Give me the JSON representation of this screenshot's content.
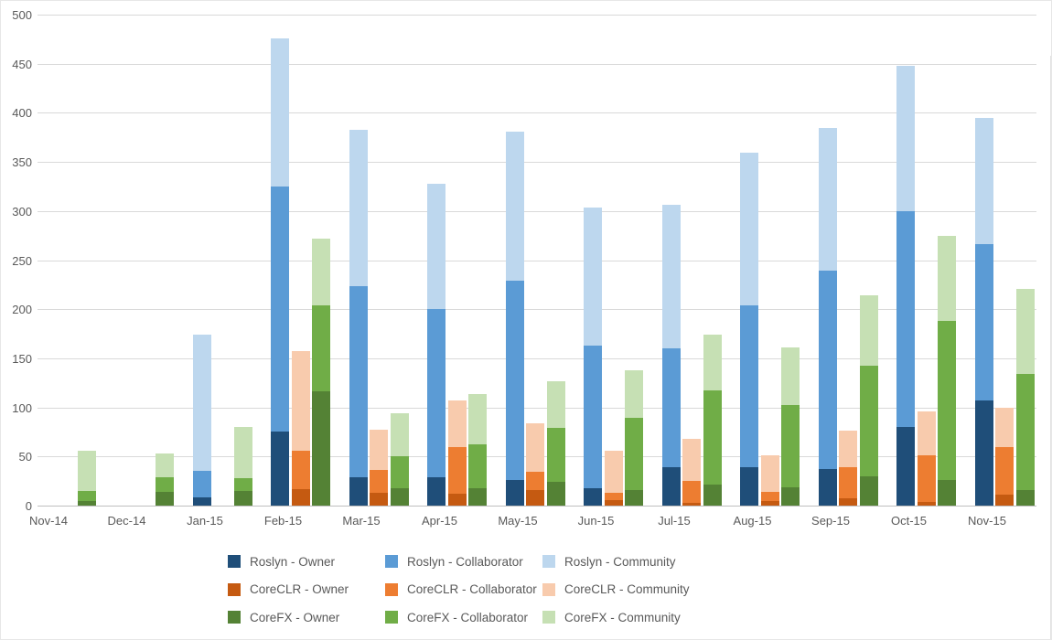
{
  "chart_data": {
    "type": "bar",
    "stacked": true,
    "title": "",
    "xlabel": "",
    "ylabel": "",
    "ylim": [
      0,
      500
    ],
    "yticks": [
      0,
      50,
      100,
      150,
      200,
      250,
      300,
      350,
      400,
      450,
      500
    ],
    "grid": true,
    "legend_position": "bottom",
    "categories": [
      "Nov-14",
      "Dec-14",
      "Jan-15",
      "Feb-15",
      "Mar-15",
      "Apr-15",
      "May-15",
      "Jun-15",
      "Jul-15",
      "Aug-15",
      "Sep-15",
      "Oct-15",
      "Nov-15"
    ],
    "bar_groups": [
      "Roslyn",
      "CoreCLR",
      "CoreFX"
    ],
    "series": [
      {
        "name": "Roslyn - Owner",
        "group": "Roslyn",
        "color": "#1f4e79",
        "values": [
          0,
          0,
          8,
          75,
          29,
          29,
          26,
          18,
          39,
          39,
          37,
          80,
          107
        ]
      },
      {
        "name": "Roslyn - Collaborator",
        "group": "Roslyn",
        "color": "#5b9bd5",
        "values": [
          0,
          0,
          27,
          250,
          194,
          171,
          203,
          145,
          121,
          165,
          202,
          220,
          159
        ]
      },
      {
        "name": "Roslyn - Community",
        "group": "Roslyn",
        "color": "#bdd7ee",
        "values": [
          0,
          0,
          139,
          151,
          160,
          128,
          152,
          141,
          146,
          155,
          146,
          148,
          129
        ]
      },
      {
        "name": "CoreCLR - Owner",
        "group": "CoreCLR",
        "color": "#c55a11",
        "values": [
          0,
          0,
          0,
          17,
          13,
          12,
          16,
          6,
          3,
          5,
          7,
          4,
          11
        ]
      },
      {
        "name": "CoreCLR - Collaborator",
        "group": "CoreCLR",
        "color": "#ed7d31",
        "values": [
          0,
          0,
          0,
          39,
          23,
          48,
          18,
          7,
          22,
          9,
          32,
          47,
          49
        ]
      },
      {
        "name": "CoreCLR - Community",
        "group": "CoreCLR",
        "color": "#f8cbad",
        "values": [
          0,
          0,
          0,
          101,
          41,
          47,
          50,
          43,
          43,
          37,
          37,
          45,
          40
        ]
      },
      {
        "name": "CoreFX - Owner",
        "group": "CoreFX",
        "color": "#548235",
        "values": [
          5,
          14,
          15,
          116,
          18,
          18,
          24,
          16,
          21,
          19,
          30,
          26,
          16
        ]
      },
      {
        "name": "CoreFX - Collaborator",
        "group": "CoreFX",
        "color": "#70ad47",
        "values": [
          10,
          15,
          13,
          88,
          32,
          44,
          55,
          73,
          96,
          83,
          112,
          162,
          118
        ]
      },
      {
        "name": "CoreFX - Community",
        "group": "CoreFX",
        "color": "#c6e0b4",
        "values": [
          41,
          24,
          52,
          68,
          44,
          52,
          48,
          49,
          57,
          59,
          72,
          87,
          87
        ]
      }
    ]
  },
  "legend": {
    "items": [
      {
        "label": "Roslyn - Owner",
        "color": "#1f4e79"
      },
      {
        "label": "Roslyn - Collaborator",
        "color": "#5b9bd5"
      },
      {
        "label": "Roslyn - Community",
        "color": "#bdd7ee"
      },
      {
        "label": "CoreCLR - Owner",
        "color": "#c55a11"
      },
      {
        "label": "CoreCLR - Collaborator",
        "color": "#ed7d31"
      },
      {
        "label": "CoreCLR - Community",
        "color": "#f8cbad"
      },
      {
        "label": "CoreFX - Owner",
        "color": "#548235"
      },
      {
        "label": "CoreFX - Collaborator",
        "color": "#70ad47"
      },
      {
        "label": "CoreFX - Community",
        "color": "#c6e0b4"
      }
    ]
  },
  "colors": {
    "axis_text": "#595959",
    "gridline": "#d9d9d9",
    "axis_line": "#bfbfbf",
    "background": "#ffffff"
  }
}
